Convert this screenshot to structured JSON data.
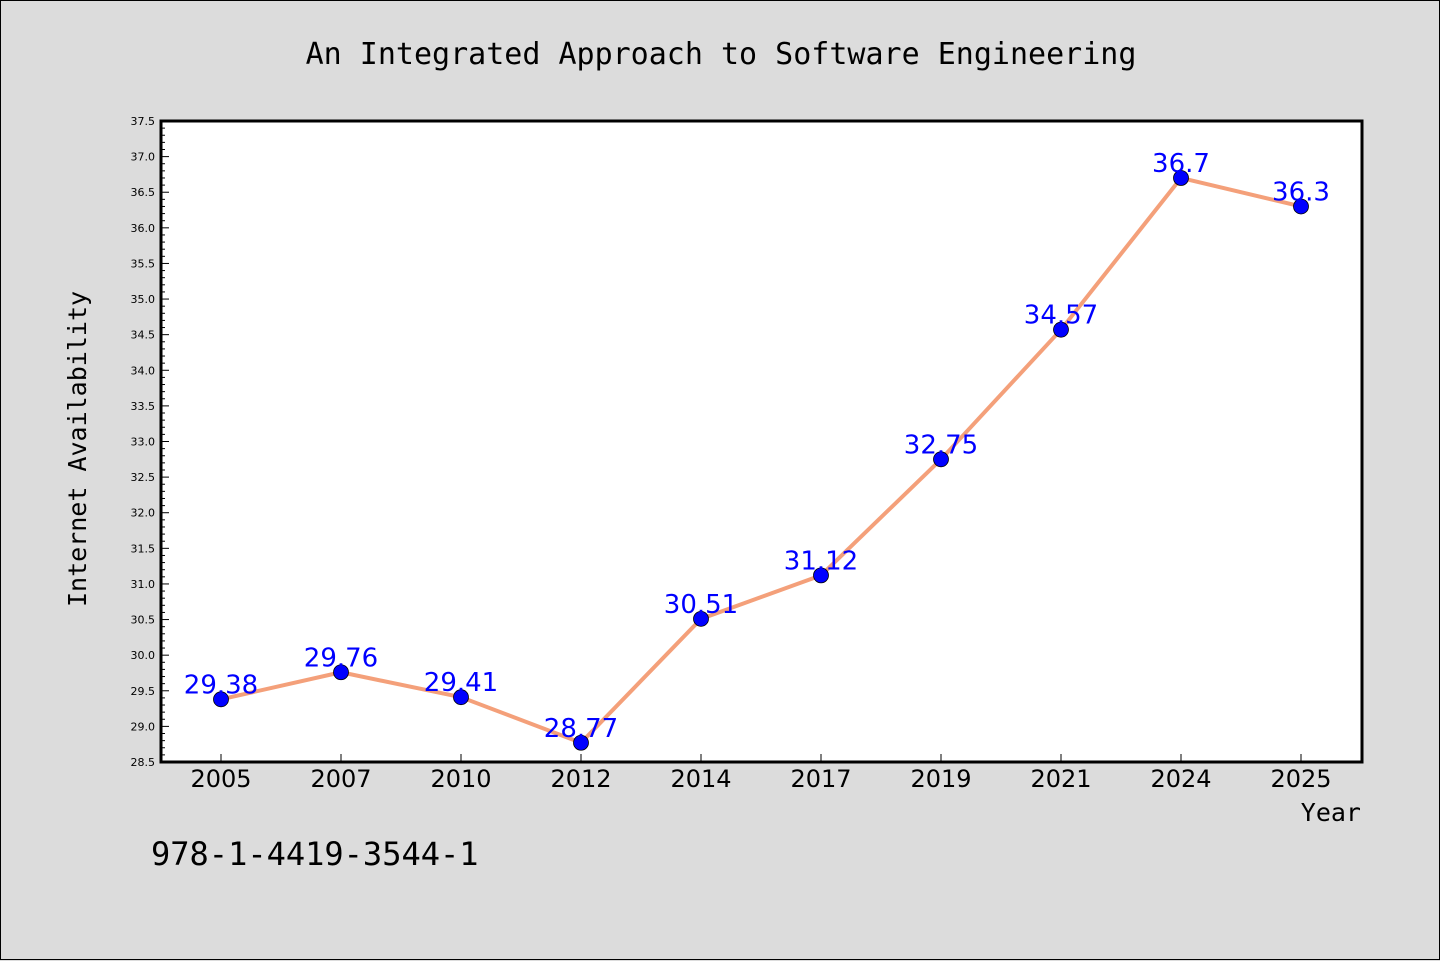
{
  "chart_data": {
    "type": "line",
    "title": "An Integrated Approach to Software Engineering",
    "xlabel": "Year",
    "ylabel": "Internet Availability",
    "categories": [
      "2005",
      "2007",
      "2010",
      "2012",
      "2014",
      "2017",
      "2019",
      "2021",
      "2024",
      "2025"
    ],
    "series": [
      {
        "values": [
          29.38,
          29.76,
          29.41,
          28.77,
          30.51,
          31.12,
          32.75,
          34.57,
          36.7,
          36.3
        ],
        "labels": [
          "29.38",
          "29.76",
          "29.41",
          "28.77",
          "30.51",
          "31.12",
          "32.75",
          "34.57",
          "36.7",
          "36.3"
        ],
        "line_color": "#f4a07a",
        "marker_color": "#0000ff"
      }
    ],
    "ylim": [
      28.5,
      37.5
    ],
    "yticks": [
      "28.5",
      "29.0",
      "29.5",
      "30.0",
      "30.5",
      "31.0",
      "31.5",
      "32.0",
      "32.5",
      "33.0",
      "33.5",
      "34.0",
      "34.5",
      "35.0",
      "35.5",
      "36.0",
      "36.5",
      "37.0",
      "37.5"
    ],
    "grid": false,
    "legend": "none"
  },
  "footer": {
    "isbn": "978-1-4419-3544-1"
  },
  "colors": {
    "background": "#dcdcdc",
    "plot_background": "#ffffff",
    "line": "#f4a07a",
    "marker": "#0000ff",
    "data_label": "#0000ff"
  }
}
